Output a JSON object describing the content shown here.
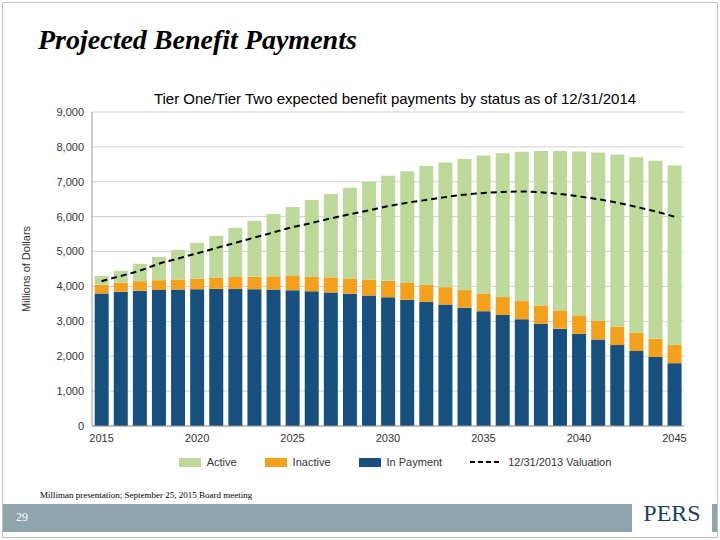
{
  "chart_data": {
    "type": "bar",
    "stacked": true,
    "title": "Projected Benefit Payments",
    "subtitle": "Tier One/Tier Two expected benefit payments by status as of 12/31/2014",
    "y_label": "Millions of Dollars",
    "categories": [
      "2015",
      null,
      null,
      null,
      null,
      "2020",
      null,
      null,
      null,
      null,
      "2025",
      null,
      null,
      null,
      null,
      "2030",
      null,
      null,
      null,
      null,
      "2035",
      null,
      null,
      null,
      null,
      "2040",
      null,
      null,
      null,
      null,
      "2045"
    ],
    "series": [
      {
        "name": "Active",
        "color": "#bcd99a",
        "values": [
          250,
          340,
          500,
          670,
          850,
          1030,
          1200,
          1410,
          1600,
          1790,
          1980,
          2200,
          2390,
          2600,
          2805,
          3010,
          3200,
          3400,
          3570,
          3755,
          3950,
          4125,
          4280,
          4425,
          4565,
          4700,
          4830,
          4935,
          5025,
          5100,
          5150
        ]
      },
      {
        "name": "Inactive",
        "color": "#f5a01a",
        "values": [
          250,
          260,
          270,
          280,
          290,
          300,
          320,
          340,
          360,
          380,
          410,
          420,
          430,
          440,
          455,
          470,
          480,
          490,
          500,
          505,
          510,
          515,
          520,
          525,
          525,
          530,
          530,
          525,
          525,
          520,
          520
        ]
      },
      {
        "name": "In Payment",
        "color": "#17507f",
        "values": [
          3800,
          3850,
          3880,
          3900,
          3910,
          3920,
          3930,
          3930,
          3920,
          3910,
          3890,
          3860,
          3830,
          3790,
          3740,
          3690,
          3620,
          3560,
          3480,
          3390,
          3290,
          3180,
          3060,
          2930,
          2790,
          2640,
          2480,
          2320,
          2150,
          1980,
          1800
        ]
      },
      {
        "name": "12/31/2013 Valuation",
        "type": "line",
        "line_style": "dashed",
        "color": "#000000",
        "values": [
          4150,
          4300,
          4450,
          4650,
          4800,
          4950,
          5100,
          5250,
          5400,
          5550,
          5700,
          5820,
          5950,
          6070,
          6180,
          6300,
          6400,
          6480,
          6560,
          6630,
          6680,
          6710,
          6720,
          6700,
          6650,
          6580,
          6500,
          6400,
          6280,
          6150,
          6000
        ]
      }
    ],
    "ylim": [
      0,
      9000
    ],
    "yticks": [
      0,
      {
        "value": 1000,
        "label": "1,000"
      },
      {
        "value": 2000,
        "label": "2,000"
      },
      {
        "value": 3000,
        "label": "3,000"
      },
      {
        "value": 4000,
        "label": "4,000"
      },
      {
        "value": 5000,
        "label": "5,000"
      },
      {
        "value": 6000,
        "label": "6,000"
      },
      {
        "value": 7000,
        "label": "7,000"
      },
      {
        "value": 8000,
        "label": "8,000"
      },
      {
        "value": 9000,
        "label": "9,000"
      }
    ],
    "grid": true,
    "legend": "bottom"
  },
  "slide": {
    "source": "Milliman presentation; September 25, 2015 Board meeting",
    "page": "29",
    "logo": "PERS"
  }
}
